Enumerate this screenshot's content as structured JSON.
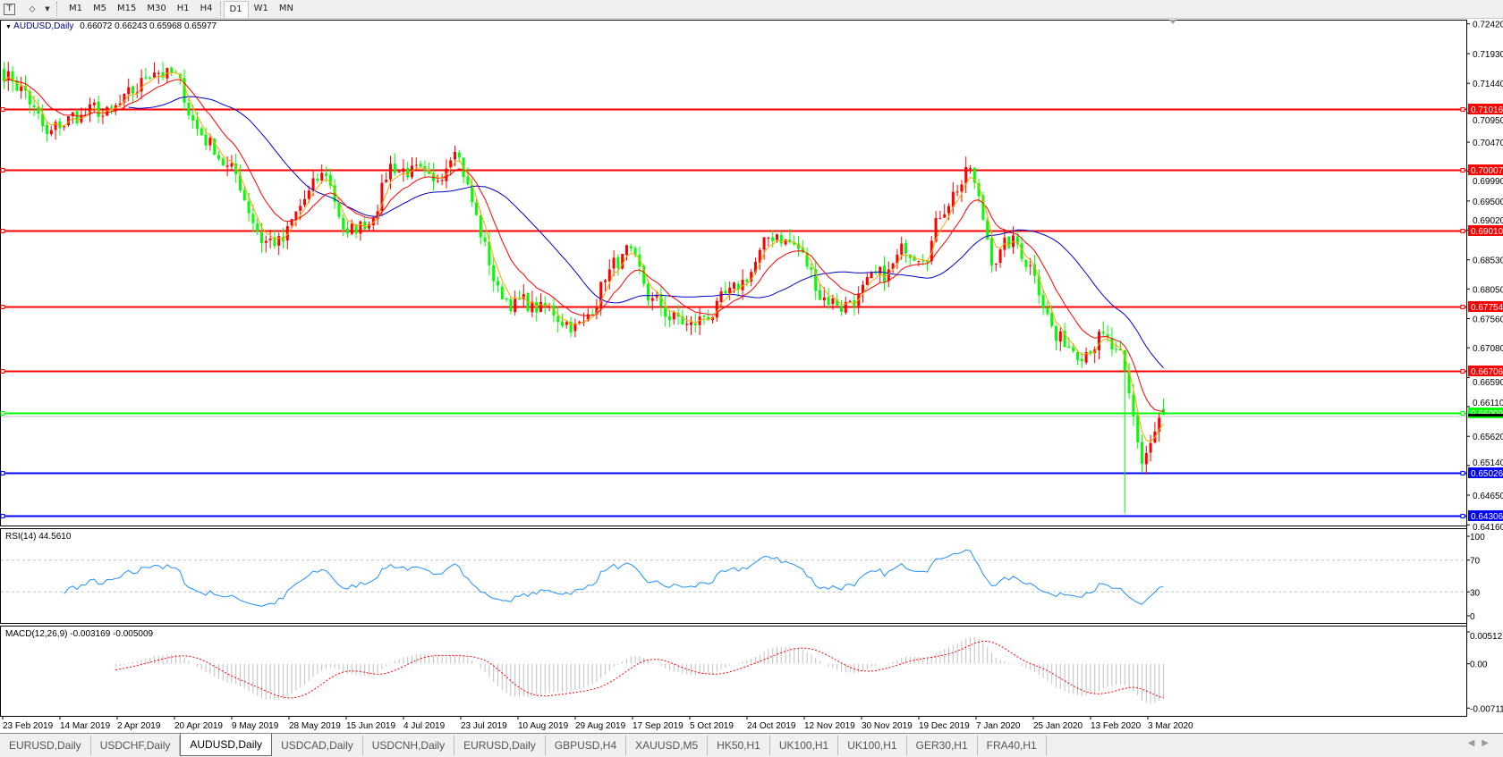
{
  "toolbar": {
    "icons": [
      "text-tool-icon",
      "draw-tools-icon",
      "dropdown-arrow-icon"
    ],
    "timeframes": [
      "M1",
      "M5",
      "M15",
      "M30",
      "H1",
      "H4",
      "D1",
      "W1",
      "MN"
    ],
    "active_timeframe": "D1"
  },
  "chart": {
    "symbol_label": "AUDUSD,Daily",
    "ohlc_label": "0.66072 0.66243 0.65968 0.65977",
    "rsi_label": "RSI(14) 44.5610",
    "macd_label": "MACD(12,26,9) -0.003169 -0.005009",
    "colors": {
      "bear_candle": "#00FF00",
      "bull_candle": "#FF0000",
      "ma_fast": "#FFA500",
      "ma_mid": "#FF0000",
      "ma_slow": "#0000CD",
      "rsi": "#1E90FF",
      "macd_hist": "#C0C0C0",
      "macd_signal": "#FF0000"
    }
  },
  "chart_data": {
    "type": "candlestick",
    "symbol": "AUDUSD",
    "timeframe": "Daily",
    "close_path_weekly": [
      0.7165,
      0.713,
      0.705,
      0.7085,
      0.7095,
      0.709,
      0.712,
      0.7175,
      0.715,
      0.707,
      0.703,
      0.6975,
      0.689,
      0.688,
      0.695,
      0.6995,
      0.689,
      0.692,
      0.701,
      0.7,
      0.696,
      0.706,
      0.692,
      0.68,
      0.678,
      0.677,
      0.676,
      0.674,
      0.683,
      0.686,
      0.679,
      0.676,
      0.674,
      0.677,
      0.679,
      0.685,
      0.69,
      0.687,
      0.68,
      0.678,
      0.68,
      0.682,
      0.687,
      0.688,
      0.696,
      0.7,
      0.686,
      0.688,
      0.684,
      0.672,
      0.671,
      0.673,
      0.668,
      0.652,
      0.66
    ],
    "last_bar": {
      "open": 0.66072,
      "high": 0.66243,
      "low": 0.65968,
      "close": 0.65977
    },
    "price_axis": [
      "0.72420",
      "0.71930",
      "0.71440",
      "0.70950",
      "0.70470",
      "0.69990",
      "0.69500",
      "0.69020",
      "0.68530",
      "0.68050",
      "0.67560",
      "0.67080",
      "0.66590",
      "0.66110",
      "0.65620",
      "0.65140",
      "0.64650",
      "0.64160"
    ],
    "ylim": [
      0.6416,
      0.7242
    ],
    "horizontal_lines": [
      {
        "price": "0.71016",
        "color": "#FF0000"
      },
      {
        "price": "0.70007",
        "color": "#FF0000"
      },
      {
        "price": "0.69010",
        "color": "#FF0000"
      },
      {
        "price": "0.67754",
        "color": "#FF0000"
      },
      {
        "price": "0.66706",
        "color": "#FF0000"
      },
      {
        "price": "0.66009",
        "color": "#00FF00"
      },
      {
        "price": "0.65026",
        "color": "#0000FF"
      },
      {
        "price": "0.64306",
        "color": "#0000FF"
      }
    ],
    "date_axis": [
      "23 Feb 2019",
      "14 Mar 2019",
      "2 Apr 2019",
      "20 Apr 2019",
      "9 May 2019",
      "28 May 2019",
      "15 Jun 2019",
      "4 Jul 2019",
      "23 Jul 2019",
      "10 Aug 2019",
      "29 Aug 2019",
      "17 Sep 2019",
      "5 Oct 2019",
      "24 Oct 2019",
      "12 Nov 2019",
      "30 Nov 2019",
      "19 Dec 2019",
      "7 Jan 2020",
      "25 Jan 2020",
      "13 Feb 2020",
      "3 Mar 2020"
    ],
    "rsi_axis": [
      "100",
      "70",
      "30",
      "0"
    ],
    "rsi_levels": [
      70,
      30
    ],
    "macd_axis": [
      "0.005121",
      "0.00",
      "-0.00711"
    ]
  },
  "tabs": [
    {
      "label": "EURUSD,Daily"
    },
    {
      "label": "USDCHF,Daily"
    },
    {
      "label": "AUDUSD,Daily",
      "active": true
    },
    {
      "label": "USDCAD,Daily"
    },
    {
      "label": "USDCNH,Daily"
    },
    {
      "label": "EURUSD,Daily"
    },
    {
      "label": "GBPUSD,H4"
    },
    {
      "label": "XAUUSD,M5"
    },
    {
      "label": "HK50,H1"
    },
    {
      "label": "UK100,H1"
    },
    {
      "label": "UK100,H1"
    },
    {
      "label": "GER30,H1"
    },
    {
      "label": "FRA40,H1"
    }
  ],
  "tab_scroll": {
    "left": "◀",
    "right": "▶"
  }
}
